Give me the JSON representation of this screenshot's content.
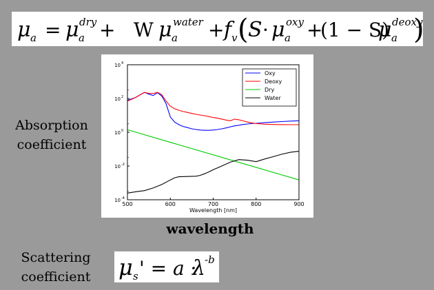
{
  "equation1": {
    "mu": "μ",
    "sub_a": "a",
    "eq": "=",
    "sup_dry": "dry",
    "plus": "+",
    "W": "W",
    "sup_water": "water",
    "f": "f",
    "sub_v": "v",
    "lparen": "(",
    "S": "S",
    "cdot": "·",
    "sup_oxy": "oxy",
    "one_minus": "(1 − S)",
    "sup_deoxy": "deoxy",
    "rparen": ")"
  },
  "equation2": {
    "mu": "μ",
    "sub_s": "s",
    "prime_eq": "' = a ·",
    "lambda": "λ",
    "sup": "-b"
  },
  "labels": {
    "absorption_line1": "Absorption",
    "absorption_line2": "coefficient",
    "wavelength": "wavelength",
    "scattering_line1": "Scattering",
    "scattering_line2": "coefficient"
  },
  "chart_data": {
    "type": "line",
    "xlabel": "Wavelength [nm]",
    "ylabel": "",
    "xlim": [
      500,
      900
    ],
    "ylim": [
      0.0001,
      10000
    ],
    "yscale": "log",
    "x_ticks": [
      500,
      600,
      700,
      800,
      900
    ],
    "y_ticks": [
      {
        "value": 0.0001,
        "base": "10",
        "exp": "-4"
      },
      {
        "value": 0.01,
        "base": "10",
        "exp": "-2"
      },
      {
        "value": 1,
        "base": "10",
        "exp": "0"
      },
      {
        "value": 100,
        "base": "10",
        "exp": "2"
      },
      {
        "value": 10000,
        "base": "10",
        "exp": "4"
      }
    ],
    "legend_position": "top-right",
    "series": [
      {
        "name": "Oxy",
        "color": "#0000ff",
        "x": [
          500,
          510,
          520,
          530,
          540,
          550,
          560,
          570,
          580,
          590,
          600,
          610,
          620,
          630,
          640,
          650,
          660,
          670,
          680,
          690,
          700,
          710,
          720,
          730,
          740,
          750,
          760,
          770,
          780,
          790,
          800,
          820,
          840,
          860,
          880,
          900
        ],
        "y": [
          80,
          95,
          120,
          170,
          230,
          180,
          150,
          220,
          140,
          50,
          8,
          4,
          2.8,
          2.2,
          1.9,
          1.6,
          1.45,
          1.35,
          1.3,
          1.3,
          1.35,
          1.45,
          1.6,
          1.8,
          2.1,
          2.4,
          2.6,
          2.9,
          3.1,
          3.3,
          3.4,
          3.7,
          4,
          4.3,
          4.6,
          4.8
        ]
      },
      {
        "name": "Deoxy",
        "color": "#ff0000",
        "x": [
          500,
          510,
          520,
          530,
          540,
          550,
          560,
          570,
          580,
          590,
          600,
          610,
          620,
          630,
          640,
          650,
          660,
          670,
          680,
          690,
          700,
          710,
          720,
          730,
          740,
          750,
          760,
          770,
          780,
          790,
          800,
          820,
          840,
          860,
          880,
          900
        ],
        "y": [
          70,
          90,
          120,
          170,
          230,
          200,
          200,
          230,
          170,
          70,
          35,
          25,
          20,
          17,
          15,
          13,
          11.5,
          10.5,
          9.5,
          8.5,
          7.5,
          6.8,
          6,
          5.3,
          4.8,
          6,
          5.5,
          4.7,
          4,
          3.6,
          3.3,
          3,
          2.9,
          2.85,
          2.8,
          2.8
        ]
      },
      {
        "name": "Dry",
        "color": "#00cc00",
        "x": [
          500,
          900
        ],
        "y": [
          1.4,
          0.0015
        ]
      },
      {
        "name": "Water",
        "color": "#000000",
        "x": [
          500,
          520,
          540,
          560,
          580,
          600,
          610,
          620,
          640,
          660,
          670,
          680,
          690,
          700,
          720,
          740,
          760,
          780,
          800,
          820,
          840,
          860,
          880,
          900
        ],
        "y": [
          0.00025,
          0.0003,
          0.00035,
          0.0005,
          0.0008,
          0.0015,
          0.002,
          0.0023,
          0.0024,
          0.0025,
          0.0028,
          0.0035,
          0.0045,
          0.006,
          0.01,
          0.017,
          0.024,
          0.022,
          0.018,
          0.026,
          0.036,
          0.05,
          0.065,
          0.075
        ]
      }
    ]
  }
}
